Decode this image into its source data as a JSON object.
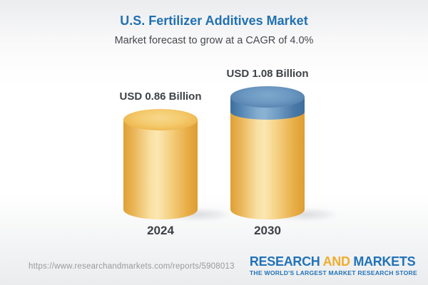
{
  "header": {
    "title": "U.S. Fertilizer Additives Market",
    "subtitle": "Market forecast to grow at a CAGR of 4.0%"
  },
  "chart_data": {
    "type": "bar",
    "variant": "3d-cylinder",
    "title": "U.S. Fertilizer Additives Market",
    "subtitle": "Market forecast to grow at a CAGR of 4.0%",
    "cagr_percent": 4.0,
    "unit": "USD Billion",
    "categories": [
      "2024",
      "2030"
    ],
    "values": [
      0.86,
      1.08
    ],
    "value_labels": [
      "USD 0.86 Billion",
      "USD 1.08 Billion"
    ],
    "growth_segment": {
      "bar": "2030",
      "from": 0.86,
      "to": 1.08,
      "color": "#5d8fba"
    },
    "bar_colors": {
      "base": "#f2c460",
      "growth": "#5d8fba"
    },
    "legend": false,
    "grid": false,
    "axes": false
  },
  "footer": {
    "url": "https://www.researchandmarkets.com/reports/5908013",
    "logo": {
      "word1": "RESEARCH",
      "word2": "AND",
      "word3": "MARKETS",
      "tagline": "THE WORLD'S LARGEST MARKET RESEARCH STORE"
    }
  },
  "colors": {
    "title_blue": "#2171b2",
    "text_dark": "#3e4246",
    "url_gray": "#9a9a9a",
    "logo_blue": "#2273b8",
    "logo_gold": "#efae2f"
  }
}
